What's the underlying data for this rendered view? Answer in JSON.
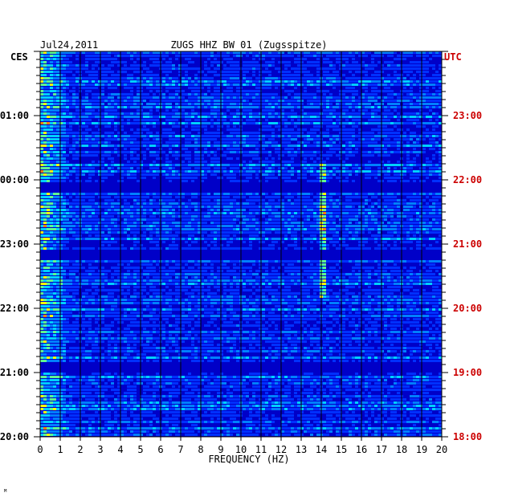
{
  "header": {
    "date": "Jul24,2011",
    "station": "ZUGS HHZ BW 01 (Zugsspitze)",
    "left_tz": "CES",
    "right_tz": "UTC"
  },
  "footer": {
    "corner_mark": "ᴹ"
  },
  "colors": {
    "background_band": "#0000c8",
    "grid": "#000000",
    "utc_label": "#cc0000"
  },
  "chart_data": {
    "type": "heatmap",
    "title": "ZUGS HHZ BW 01 (Zugsspitze)",
    "xlabel": "FREQUENCY (HZ)",
    "ylabel": "",
    "xlim": [
      0,
      20
    ],
    "x_ticks": [
      "0",
      "1",
      "2",
      "3",
      "4",
      "5",
      "6",
      "7",
      "8",
      "9",
      "10",
      "11",
      "12",
      "13",
      "14",
      "15",
      "16",
      "17",
      "18",
      "19",
      "20"
    ],
    "left_y_ticks": [
      "01:00",
      "00:00",
      "23:00",
      "22:00",
      "21:00",
      "20:00"
    ],
    "right_y_ticks": [
      "23:00",
      "22:00",
      "21:00",
      "20:00",
      "19:00",
      "18:00"
    ],
    "grid": true,
    "colormap": [
      "#0000c8",
      "#0030ff",
      "#0080ff",
      "#00d0ff",
      "#60ff90",
      "#ffff00",
      "#ff8000",
      "#ff0000"
    ]
  }
}
